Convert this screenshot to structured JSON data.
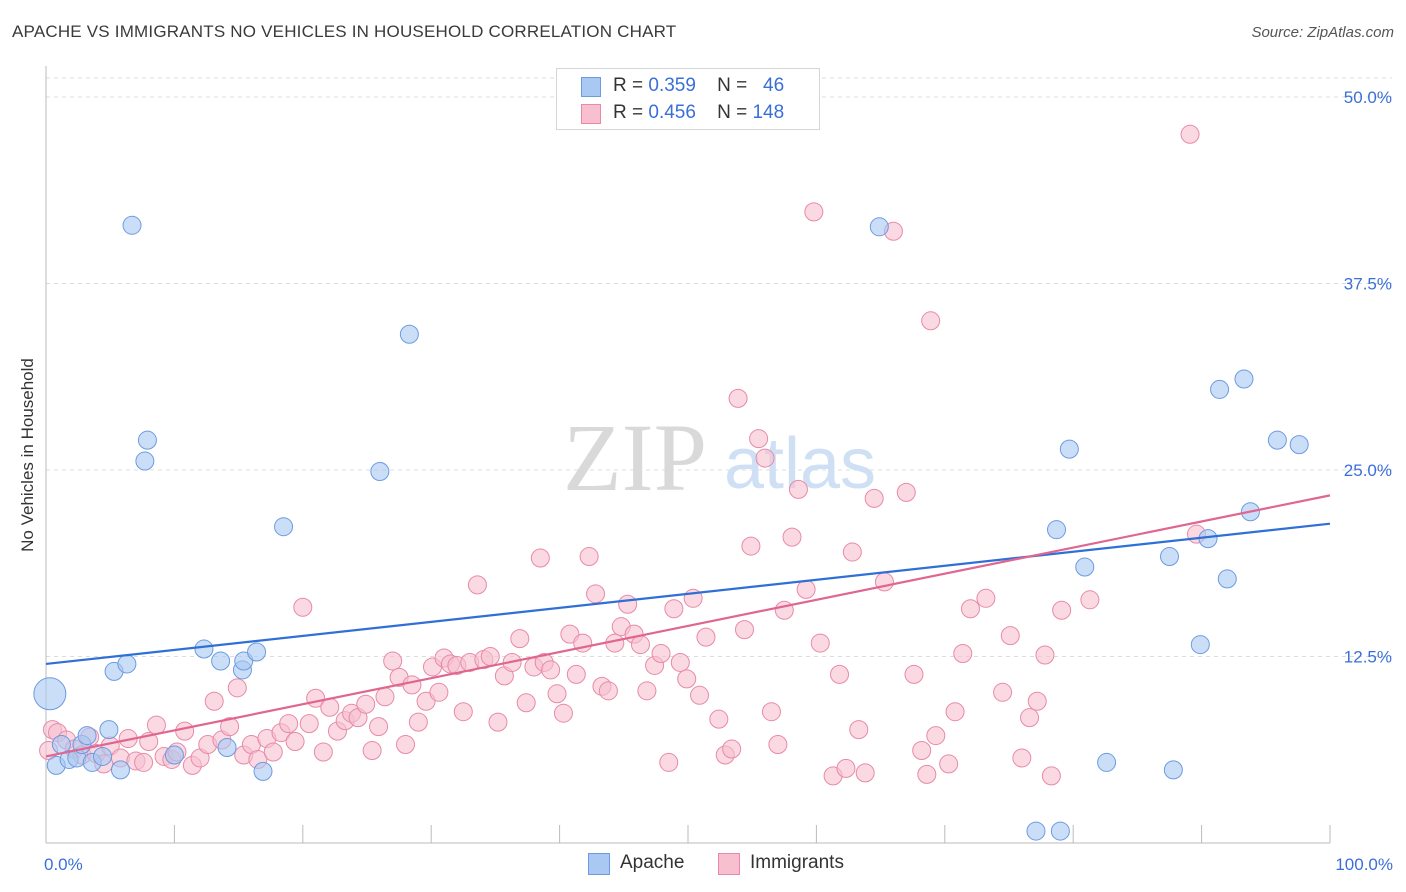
{
  "title": "APACHE VS IMMIGRANTS NO VEHICLES IN HOUSEHOLD CORRELATION CHART",
  "source": "Source: ZipAtlas.com",
  "watermark": {
    "zip": "ZIP",
    "atlas": "atlas"
  },
  "legend": {
    "apache": {
      "r_label": "R =",
      "r_value": "0.359",
      "n_label": "N =",
      "n_value": "46"
    },
    "immigrants": {
      "r_label": "R =",
      "r_value": "0.456",
      "n_label": "N =",
      "n_value": "148"
    }
  },
  "colors": {
    "apache_fill": "#a9c8f2",
    "apache_stroke": "#6c9be0",
    "apache_line": "#2f6fd6",
    "immigrants_fill": "#f7bfd0",
    "immigrants_stroke": "#e88aa8",
    "immigrants_line": "#e0668f",
    "tick_label": "#3a6fd8",
    "grid": "#dcdcdc"
  },
  "chart_data": {
    "type": "scatter",
    "title": "APACHE VS IMMIGRANTS NO VEHICLES IN HOUSEHOLD CORRELATION CHART",
    "xlabel": "",
    "ylabel": "No Vehicles in Household",
    "xlim": [
      0,
      100
    ],
    "ylim": [
      0,
      50
    ],
    "x_tick_labels": [
      "0.0%",
      "100.0%"
    ],
    "y_ticks": [
      12.5,
      25.0,
      37.5,
      50.0
    ],
    "y_tick_labels": [
      "12.5%",
      "25.0%",
      "37.5%",
      "50.0%"
    ],
    "grid": true,
    "legend_position": "top-center",
    "series": [
      {
        "name": "Apache",
        "trend": [
          [
            0,
            12.0
          ],
          [
            100,
            21.4
          ]
        ],
        "points": [
          [
            0.3,
            10.0,
            "large"
          ],
          [
            0.8,
            5.2
          ],
          [
            1.2,
            6.6
          ],
          [
            1.8,
            5.6
          ],
          [
            2.4,
            5.7
          ],
          [
            2.8,
            6.6
          ],
          [
            3.2,
            7.2
          ],
          [
            3.6,
            5.4
          ],
          [
            4.4,
            5.8
          ],
          [
            4.9,
            7.6
          ],
          [
            5.3,
            11.5
          ],
          [
            5.8,
            4.9
          ],
          [
            6.3,
            12.0
          ],
          [
            6.7,
            41.4
          ],
          [
            7.7,
            25.6
          ],
          [
            7.9,
            27.0
          ],
          [
            10.0,
            5.9
          ],
          [
            12.3,
            13.0
          ],
          [
            13.6,
            12.2
          ],
          [
            14.1,
            6.4
          ],
          [
            15.3,
            11.6
          ],
          [
            15.4,
            12.2
          ],
          [
            16.4,
            12.8
          ],
          [
            16.9,
            4.8
          ],
          [
            18.5,
            21.2
          ],
          [
            26.0,
            24.9
          ],
          [
            28.3,
            34.1
          ],
          [
            64.9,
            41.3
          ],
          [
            77.1,
            0.8
          ],
          [
            79.0,
            0.8
          ],
          [
            78.7,
            21.0
          ],
          [
            79.7,
            26.4
          ],
          [
            80.9,
            18.5
          ],
          [
            82.6,
            5.4
          ],
          [
            87.5,
            19.2
          ],
          [
            87.8,
            4.9
          ],
          [
            89.9,
            13.3
          ],
          [
            90.5,
            20.4
          ],
          [
            91.4,
            30.4
          ],
          [
            92.0,
            17.7
          ],
          [
            93.3,
            31.1
          ],
          [
            93.8,
            22.2
          ],
          [
            95.9,
            27.0
          ],
          [
            97.6,
            26.7
          ]
        ]
      },
      {
        "name": "Immigrants",
        "trend": [
          [
            0,
            5.8
          ],
          [
            100,
            23.3
          ]
        ],
        "points": [
          [
            0.2,
            6.2
          ],
          [
            0.5,
            7.6
          ],
          [
            0.9,
            7.4
          ],
          [
            1.6,
            6.9
          ],
          [
            2.2,
            6.3
          ],
          [
            2.8,
            5.9
          ],
          [
            3.4,
            7.1
          ],
          [
            3.9,
            6.0
          ],
          [
            4.5,
            5.3
          ],
          [
            5.0,
            6.5
          ],
          [
            5.8,
            5.7
          ],
          [
            6.4,
            7.0
          ],
          [
            7.0,
            5.5
          ],
          [
            7.6,
            5.4
          ],
          [
            8.0,
            6.8
          ],
          [
            8.6,
            7.9
          ],
          [
            9.2,
            5.8
          ],
          [
            9.8,
            5.6
          ],
          [
            10.2,
            6.1
          ],
          [
            10.8,
            7.5
          ],
          [
            11.4,
            5.2
          ],
          [
            12.0,
            5.7
          ],
          [
            12.6,
            6.6
          ],
          [
            13.1,
            9.5
          ],
          [
            13.7,
            6.9
          ],
          [
            14.3,
            7.8
          ],
          [
            14.9,
            10.4
          ],
          [
            15.4,
            5.9
          ],
          [
            16.0,
            6.6
          ],
          [
            16.5,
            5.6
          ],
          [
            17.2,
            7.0
          ],
          [
            17.7,
            6.1
          ],
          [
            18.3,
            7.4
          ],
          [
            18.9,
            8.0
          ],
          [
            19.4,
            6.8
          ],
          [
            20.0,
            15.8
          ],
          [
            20.5,
            8.0
          ],
          [
            21.0,
            9.7
          ],
          [
            21.6,
            6.1
          ],
          [
            22.1,
            9.1
          ],
          [
            22.7,
            7.5
          ],
          [
            23.3,
            8.2
          ],
          [
            23.8,
            8.7
          ],
          [
            24.3,
            8.4
          ],
          [
            24.9,
            9.3
          ],
          [
            25.4,
            6.2
          ],
          [
            25.9,
            7.8
          ],
          [
            26.4,
            9.8
          ],
          [
            27.0,
            12.2
          ],
          [
            27.5,
            11.1
          ],
          [
            28.0,
            6.6
          ],
          [
            28.5,
            10.6
          ],
          [
            29.0,
            8.1
          ],
          [
            29.6,
            9.5
          ],
          [
            30.1,
            11.8
          ],
          [
            30.6,
            10.1
          ],
          [
            31.0,
            12.4
          ],
          [
            31.5,
            12.0
          ],
          [
            32.0,
            11.9
          ],
          [
            32.5,
            8.8
          ],
          [
            33.0,
            12.1
          ],
          [
            33.6,
            17.3
          ],
          [
            34.1,
            12.3
          ],
          [
            34.6,
            12.5
          ],
          [
            35.2,
            8.1
          ],
          [
            35.7,
            11.2
          ],
          [
            36.3,
            12.1
          ],
          [
            36.9,
            13.7
          ],
          [
            37.4,
            9.4
          ],
          [
            38.0,
            11.8
          ],
          [
            38.5,
            19.1
          ],
          [
            38.8,
            12.1
          ],
          [
            39.3,
            11.6
          ],
          [
            39.8,
            10.0
          ],
          [
            40.3,
            8.7
          ],
          [
            40.8,
            14.0
          ],
          [
            41.3,
            11.3
          ],
          [
            41.8,
            13.4
          ],
          [
            42.3,
            19.2
          ],
          [
            42.8,
            16.7
          ],
          [
            43.3,
            10.5
          ],
          [
            43.8,
            10.2
          ],
          [
            44.3,
            13.4
          ],
          [
            44.8,
            14.5
          ],
          [
            45.3,
            16.0
          ],
          [
            45.8,
            14.0
          ],
          [
            46.3,
            13.3
          ],
          [
            46.8,
            10.2
          ],
          [
            47.4,
            11.9
          ],
          [
            47.9,
            12.7
          ],
          [
            48.5,
            5.4
          ],
          [
            48.9,
            15.7
          ],
          [
            49.4,
            12.1
          ],
          [
            49.9,
            11.0
          ],
          [
            50.4,
            16.4
          ],
          [
            50.9,
            9.9
          ],
          [
            51.4,
            13.8
          ],
          [
            52.4,
            8.3
          ],
          [
            52.9,
            5.9
          ],
          [
            53.4,
            6.3
          ],
          [
            53.9,
            29.8
          ],
          [
            54.4,
            14.3
          ],
          [
            54.9,
            19.9
          ],
          [
            55.5,
            27.1
          ],
          [
            56.0,
            25.8
          ],
          [
            56.5,
            8.8
          ],
          [
            57.0,
            6.6
          ],
          [
            57.5,
            15.6
          ],
          [
            58.1,
            20.5
          ],
          [
            58.6,
            23.7
          ],
          [
            59.2,
            17.0
          ],
          [
            59.8,
            42.3
          ],
          [
            60.3,
            13.4
          ],
          [
            61.3,
            4.5
          ],
          [
            61.8,
            11.3
          ],
          [
            62.3,
            5.0
          ],
          [
            62.8,
            19.5
          ],
          [
            63.3,
            7.6
          ],
          [
            63.8,
            4.7
          ],
          [
            64.5,
            23.1
          ],
          [
            65.3,
            17.5
          ],
          [
            66.0,
            41.0
          ],
          [
            67.0,
            23.5
          ],
          [
            67.6,
            11.3
          ],
          [
            68.2,
            6.2
          ],
          [
            68.6,
            4.6
          ],
          [
            68.9,
            35.0
          ],
          [
            69.3,
            7.2
          ],
          [
            70.3,
            5.3
          ],
          [
            70.8,
            8.8
          ],
          [
            71.4,
            12.7
          ],
          [
            72.0,
            15.7
          ],
          [
            73.2,
            16.4
          ],
          [
            74.5,
            10.1
          ],
          [
            75.1,
            13.9
          ],
          [
            76.0,
            5.7
          ],
          [
            76.6,
            8.4
          ],
          [
            77.2,
            9.5
          ],
          [
            77.8,
            12.6
          ],
          [
            78.3,
            4.5
          ],
          [
            79.1,
            15.6
          ],
          [
            81.3,
            16.3
          ],
          [
            89.1,
            47.5
          ],
          [
            89.6,
            20.7
          ]
        ]
      }
    ]
  },
  "bottom_legend": {
    "apache": "Apache",
    "immigrants": "Immigrants"
  }
}
